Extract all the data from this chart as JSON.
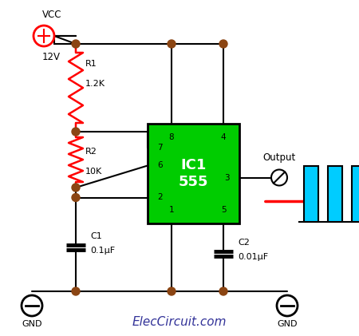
{
  "bg_color": "#ffffff",
  "wire_color": "#000000",
  "resistor_color": "#ff0000",
  "ic_fill_color": "#00cc00",
  "ic_edge_color": "#000000",
  "capacitor_color": "#000000",
  "pulse_color": "#00ccff",
  "dot_color": "#8B4513",
  "arrow_color": "#ff0000",
  "vcc_color": "#ff0000",
  "gnd_color": "#000000",
  "title": "ElecCircuit.com",
  "title_fontsize": 11,
  "ic_label": "IC1\n555",
  "ic_fontsize": 13,
  "r1_label": "R1",
  "r1_value": "1.2K",
  "r2_label": "R2",
  "r2_value": "10K",
  "c1_label": "C1",
  "c1_value": "0.1μF",
  "c2_label": "C2",
  "c2_value": "0.01μF",
  "output_label": "Output",
  "figsize": [
    4.5,
    4.21
  ],
  "dpi": 100
}
